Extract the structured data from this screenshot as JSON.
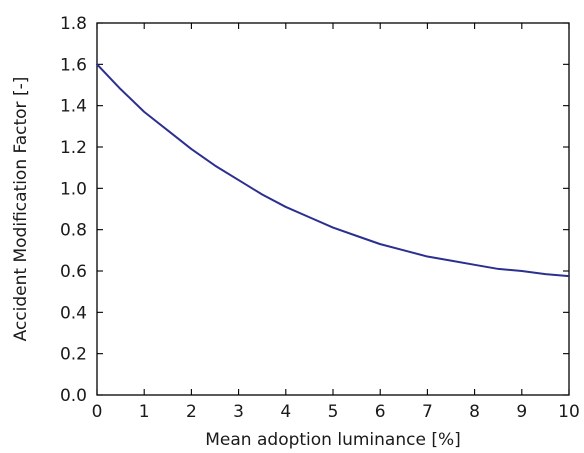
{
  "chart_data": {
    "type": "line",
    "title": "",
    "xlabel": "Mean adoption luminance [%]",
    "ylabel": "Accident Modification Factor [-]",
    "xlim": [
      0,
      10
    ],
    "ylim": [
      0.0,
      1.8
    ],
    "x_ticks": [
      "0",
      "1",
      "2",
      "3",
      "4",
      "5",
      "6",
      "7",
      "8",
      "9",
      "10"
    ],
    "y_ticks": [
      "0.0",
      "0.2",
      "0.4",
      "0.6",
      "0.8",
      "1.0",
      "1.2",
      "1.4",
      "1.6",
      "1.8"
    ],
    "grid": false,
    "series": [
      {
        "color": "#2b2f8f",
        "x": [
          0,
          0.5,
          1,
          1.5,
          2,
          2.5,
          3,
          3.5,
          4,
          4.5,
          5,
          5.5,
          6,
          6.5,
          7,
          7.5,
          8,
          8.5,
          9,
          9.5,
          10
        ],
        "y": [
          1.6,
          1.48,
          1.37,
          1.28,
          1.19,
          1.11,
          1.04,
          0.97,
          0.91,
          0.86,
          0.81,
          0.77,
          0.73,
          0.7,
          0.67,
          0.65,
          0.63,
          0.61,
          0.6,
          0.585,
          0.575
        ]
      }
    ]
  }
}
